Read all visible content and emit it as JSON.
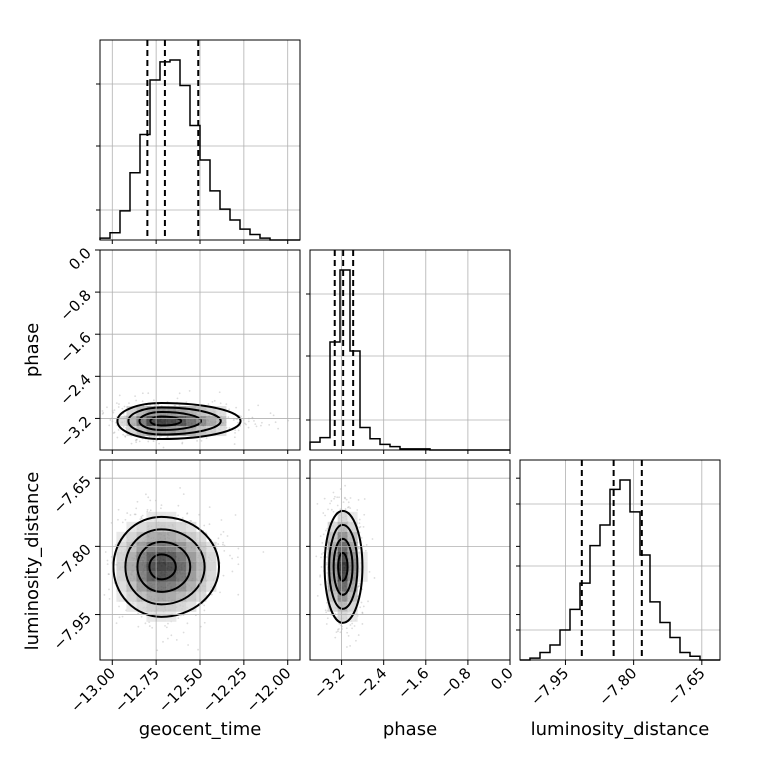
{
  "chart_data": {
    "type": "corner",
    "parameters": [
      "geocent_time",
      "phase",
      "luminosity_distance"
    ],
    "axis_labels": {
      "geocent_time": "geocent_time",
      "phase": "phase",
      "luminosity_distance": "luminosity_distance"
    },
    "ranges": {
      "geocent_time": [
        -13.07,
        -11.93
      ],
      "phase": [
        -3.8,
        0.0
      ],
      "luminosity_distance": [
        -8.05,
        -7.61
      ]
    },
    "ticks": {
      "geocent_time": [
        "−13.00",
        "−12.75",
        "−12.50",
        "−12.25",
        "−12.00"
      ],
      "phase_x": [
        "−3.2",
        "−2.4",
        "−1.6",
        "−0.8",
        "0.0"
      ],
      "phase_y": [
        "0.0",
        "−0.8",
        "−1.6",
        "−2.4",
        "−3.2"
      ],
      "luminosity_distance": [
        "−7.95",
        "−7.80",
        "−7.65"
      ]
    },
    "grid": true,
    "histograms": {
      "geocent_time": {
        "edges": [
          -13.07,
          -13.013,
          -12.956,
          -12.899,
          -12.842,
          -12.785,
          -12.728,
          -12.671,
          -12.614,
          -12.557,
          -12.5,
          -12.443,
          -12.386,
          -12.329,
          -12.272,
          -12.215,
          -12.158,
          -12.101,
          -12.044,
          -11.987,
          -11.93
        ],
        "counts": [
          1,
          4,
          16,
          37,
          58,
          88,
          98,
          99,
          85,
          63,
          44,
          27,
          17,
          11,
          6,
          3,
          1,
          0,
          0,
          0
        ],
        "quantiles": [
          -12.8,
          -12.7,
          -12.51
        ]
      },
      "phase": {
        "edges": [
          -3.8,
          -3.61,
          -3.42,
          -3.23,
          -3.04,
          -2.85,
          -2.66,
          -2.47,
          -2.28,
          -2.09,
          -1.9,
          -1.71,
          -1.52,
          -1.33,
          -1.14,
          -0.95,
          -0.76,
          -0.57,
          -0.38,
          -0.19,
          0.0
        ],
        "counts": [
          7,
          11,
          96,
          160,
          88,
          20,
          10,
          5,
          3,
          1,
          1,
          1,
          0,
          0,
          0,
          0,
          0,
          0,
          0,
          0
        ],
        "quantiles": [
          -3.33,
          -3.17,
          -2.98
        ]
      },
      "luminosity_distance": {
        "edges": [
          -8.05,
          -8.028,
          -8.006,
          -7.984,
          -7.962,
          -7.94,
          -7.918,
          -7.896,
          -7.874,
          -7.852,
          -7.83,
          -7.808,
          -7.786,
          -7.764,
          -7.742,
          -7.72,
          -7.698,
          -7.676,
          -7.654,
          -7.632,
          -7.61
        ],
        "counts": [
          0,
          1,
          4,
          8,
          16,
          27,
          41,
          61,
          72,
          91,
          96,
          79,
          56,
          31,
          20,
          12,
          4,
          2,
          0,
          0
        ],
        "quantiles": [
          -7.914,
          -7.844,
          -7.782
        ]
      }
    },
    "contours_2d": {
      "phase_vs_geocent_time": {
        "center": [
          -12.72,
          -3.25
        ],
        "levels_sigma": [
          0.5,
          1.0,
          1.5,
          2.0
        ]
      },
      "luminosity_distance_vs_geocent_time": {
        "center": [
          -12.72,
          -7.845
        ],
        "levels_sigma": [
          0.5,
          1.0,
          1.5,
          2.0
        ]
      },
      "luminosity_distance_vs_phase": {
        "center": [
          -3.18,
          -7.845
        ],
        "levels_sigma": [
          0.5,
          1.0,
          1.5,
          2.0
        ]
      }
    }
  }
}
